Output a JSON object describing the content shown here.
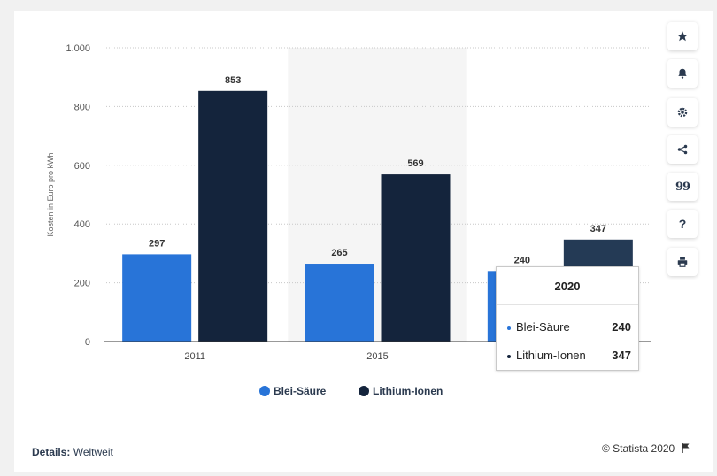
{
  "chart_data": {
    "type": "bar",
    "categories": [
      "2011",
      "2015",
      "2020"
    ],
    "series": [
      {
        "name": "Blei-Säure",
        "values": [
          297,
          265,
          240
        ],
        "color": "#2874d8"
      },
      {
        "name": "Lithium-Ionen",
        "values": [
          853,
          569,
          347
        ],
        "color": "#14243c"
      }
    ],
    "ylabel": "Kosten in Euro pro kWh",
    "ylim": [
      0,
      1000
    ],
    "yticks": [
      0,
      200,
      400,
      600,
      800,
      1000
    ],
    "ytick_labels": [
      "0",
      "200",
      "400",
      "600",
      "800",
      "1.000"
    ],
    "grid": true,
    "legend_position": "bottom",
    "highlighted_category": "2015",
    "hovered_category": "2020",
    "hover_color_lithium": "#243a55"
  },
  "tooltip": {
    "title": "2020",
    "rows": [
      {
        "label": "Blei-Säure",
        "value": "240",
        "color": "#2874d8"
      },
      {
        "label": "Lithium-Ionen",
        "value": "347",
        "color": "#14243c"
      }
    ]
  },
  "sidebar": {
    "buttons": [
      {
        "name": "favorite",
        "icon": "star-icon"
      },
      {
        "name": "notification",
        "icon": "bell-icon"
      },
      {
        "name": "settings",
        "icon": "gear-icon"
      },
      {
        "name": "share",
        "icon": "share-icon"
      },
      {
        "name": "citation",
        "icon": "quote-icon",
        "glyph": "99"
      },
      {
        "name": "help",
        "icon": "question-icon",
        "glyph": "?"
      },
      {
        "name": "print",
        "icon": "print-icon"
      }
    ]
  },
  "footer": {
    "details_label": "Details:",
    "details_value": "Weltweit",
    "credit": "© Statista 2020"
  }
}
